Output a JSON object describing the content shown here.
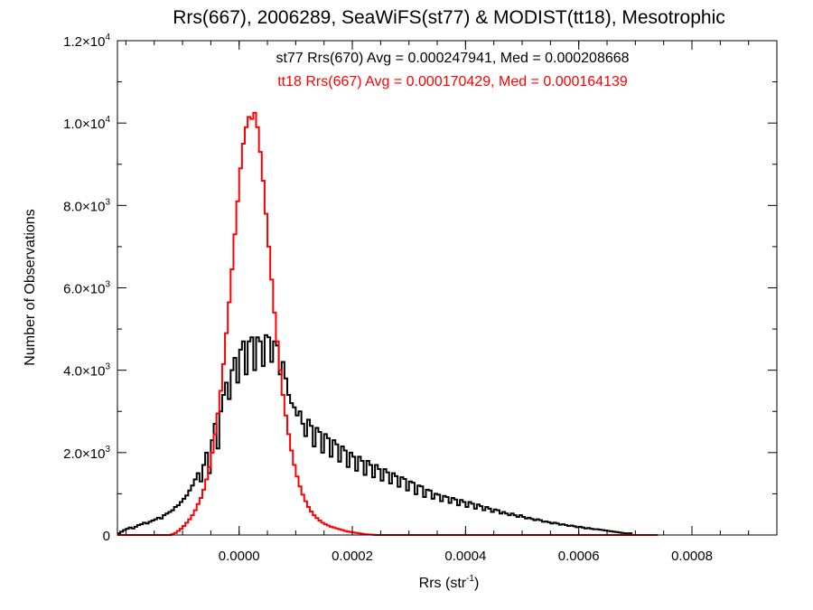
{
  "chart_data": {
    "type": "histogram",
    "title": "Rrs(667), 2006289, SeaWiFS(st77) & MODIST(tt18), Mesotrophic",
    "xlabel": "Rrs (str",
    "xlabel_sup": "-1",
    "xlabel_suffix": ")",
    "ylabel": "Number of Observations",
    "xlim": [
      -0.000215,
      0.00095
    ],
    "ylim": [
      0,
      12000
    ],
    "x_ticks": [
      {
        "value": 0.0,
        "label": "0.0000"
      },
      {
        "value": 0.0002,
        "label": "0.0002"
      },
      {
        "value": 0.0004,
        "label": "0.0004"
      },
      {
        "value": 0.0006,
        "label": "0.0006"
      },
      {
        "value": 0.0008,
        "label": "0.0008"
      }
    ],
    "y_ticks": [
      {
        "value": 0,
        "mant": "0",
        "exp": ""
      },
      {
        "value": 2000,
        "mant": "2.0×10",
        "exp": "3"
      },
      {
        "value": 4000,
        "mant": "4.0×10",
        "exp": "3"
      },
      {
        "value": 6000,
        "mant": "6.0×10",
        "exp": "3"
      },
      {
        "value": 8000,
        "mant": "8.0×10",
        "exp": "3"
      },
      {
        "value": 10000,
        "mant": "1.0×10",
        "exp": "4"
      },
      {
        "value": 12000,
        "mant": "1.2×10",
        "exp": "4"
      }
    ],
    "annotations": [
      {
        "text": "st77 Rrs(670) Avg = 0.000247941, Med = 0.000208668",
        "color": "#000000"
      },
      {
        "text": "tt18 Rrs(667) Avg = 0.000170429, Med = 0.000164139",
        "color": "#ff0000"
      }
    ],
    "series": [
      {
        "id": "st77",
        "color": "#000000",
        "x_start": -0.000215,
        "bin_width": 5e-06,
        "values": [
          40,
          80,
          120,
          150,
          180,
          160,
          200,
          240,
          260,
          300,
          280,
          320,
          350,
          380,
          420,
          400,
          480,
          520,
          560,
          600,
          680,
          720,
          800,
          880,
          960,
          1080,
          1200,
          1350,
          1500,
          1300,
          1700,
          2000,
          1500,
          2300,
          2700,
          2100,
          3000,
          3400,
          3700,
          3300,
          4000,
          4300,
          3700,
          4500,
          4700,
          3900,
          4700,
          4800,
          4000,
          4800,
          4700,
          4100,
          4850,
          4800,
          4200,
          4700,
          4600,
          3900,
          4200,
          3800,
          3400,
          3200,
          3100,
          2900,
          3000,
          2700,
          2400,
          2800,
          2650,
          2150,
          2600,
          2500,
          2000,
          2450,
          2350,
          1900,
          2300,
          2200,
          1780,
          2150,
          2050,
          1650,
          2000,
          1900,
          1560,
          1900,
          1800,
          1460,
          1800,
          1700,
          1400,
          1700,
          1600,
          1320,
          1600,
          1520,
          1250,
          1500,
          1430,
          1170,
          1400,
          1360,
          1080,
          1300,
          1270,
          990,
          1200,
          1180,
          920,
          1100,
          1080,
          880,
          1000,
          980,
          820,
          950,
          920,
          780,
          900,
          860,
          720,
          850,
          800,
          680,
          800,
          760,
          640,
          740,
          700,
          600,
          680,
          640,
          560,
          620,
          600,
          520,
          560,
          520,
          480,
          520,
          480,
          440,
          480,
          440,
          400,
          420,
          390,
          360,
          380,
          360,
          320,
          330,
          310,
          280,
          300,
          280,
          250,
          260,
          240,
          220,
          230,
          210,
          190,
          200,
          180,
          160,
          170,
          150,
          140,
          140,
          130,
          120,
          110,
          100,
          90,
          80,
          70,
          60,
          50,
          40,
          40,
          40
        ]
      },
      {
        "id": "tt18",
        "color": "#ff0000",
        "x_start": -0.000215,
        "bin_width": 5e-06,
        "values": [
          0,
          0,
          0,
          0,
          0,
          0,
          0,
          0,
          0,
          0,
          0,
          0,
          0,
          0,
          0,
          0,
          0,
          0,
          0,
          20,
          50,
          100,
          150,
          220,
          300,
          380,
          480,
          600,
          750,
          900,
          1100,
          1350,
          1650,
          2000,
          2450,
          2950,
          3500,
          4150,
          4900,
          5650,
          6450,
          7300,
          8100,
          8900,
          9500,
          9900,
          10150,
          10100,
          10250,
          9900,
          9300,
          8600,
          7800,
          7000,
          6200,
          5400,
          4700,
          4000,
          3400,
          2900,
          2450,
          2050,
          1700,
          1420,
          1180,
          980,
          820,
          680,
          570,
          480,
          410,
          350,
          300,
          260,
          230,
          200,
          180,
          160,
          140,
          120,
          100,
          85,
          70,
          60,
          50,
          40,
          30,
          20,
          15,
          10,
          5,
          0,
          0,
          0,
          0,
          0,
          0,
          0,
          0,
          0,
          0,
          0,
          0,
          0,
          0,
          0,
          0,
          0,
          0,
          0,
          0,
          0,
          0,
          0,
          0,
          0,
          0,
          0,
          0,
          0,
          0,
          0,
          0,
          0,
          0,
          0,
          0,
          0,
          0,
          0,
          0,
          0,
          0,
          0,
          0,
          0,
          0,
          0,
          0,
          0,
          0,
          0,
          0,
          0,
          0,
          0,
          0,
          0,
          0,
          0,
          0,
          0,
          0,
          0,
          0,
          0,
          0,
          0,
          0,
          0,
          0,
          0,
          0,
          0,
          0,
          0,
          0,
          0,
          0,
          0,
          0,
          0,
          0,
          0,
          0,
          0,
          0,
          0,
          0,
          0,
          0,
          0,
          0,
          0,
          0,
          0,
          0,
          0,
          0,
          0,
          0
        ]
      }
    ]
  }
}
